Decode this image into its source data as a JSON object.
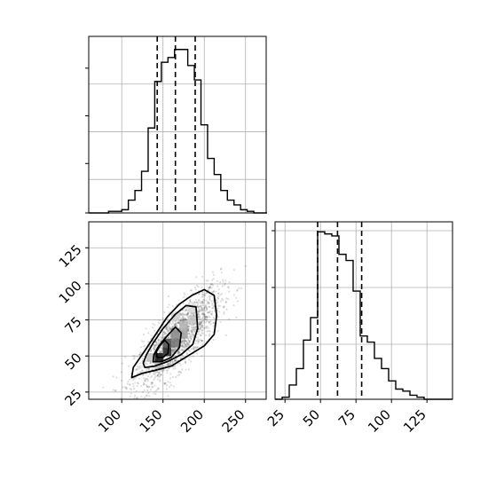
{
  "chart_data": [
    {
      "type": "histogram",
      "panel": "top-left",
      "x_range": [
        60,
        275
      ],
      "grid": true,
      "bin_edges": [
        60,
        68,
        76,
        84,
        92,
        100,
        108,
        116,
        124,
        132,
        140,
        148,
        156,
        164,
        172,
        180,
        188,
        196,
        204,
        212,
        220,
        228,
        236,
        244,
        252,
        260,
        268,
        276
      ],
      "counts": [
        0,
        0,
        0,
        1,
        1,
        2,
        8,
        14,
        26,
        53,
        82,
        94,
        97,
        102,
        102,
        92,
        83,
        55,
        34,
        24,
        14,
        8,
        5,
        2,
        1,
        0,
        0
      ],
      "quantile_lines": [
        143,
        165,
        189
      ],
      "x_ticks": [],
      "y_ticks": []
    },
    {
      "type": "density-scatter",
      "panel": "bottom-left",
      "x_range": [
        60,
        275
      ],
      "y_range": [
        20,
        143
      ],
      "grid": true,
      "x_ticks": [
        "100",
        "150",
        "200",
        "250"
      ],
      "y_ticks": [
        "25",
        "50",
        "75",
        "100",
        "125"
      ],
      "x_tick_values": [
        100,
        150,
        200,
        250
      ],
      "y_tick_values": [
        25,
        50,
        75,
        100,
        125
      ],
      "contours": [
        {
          "level": "outer",
          "points": [
            [
              112,
              35
            ],
            [
              125,
              38
            ],
            [
              140,
              40
            ],
            [
              160,
              43
            ],
            [
              180,
              50
            ],
            [
              200,
              57
            ],
            [
              212,
              65
            ],
            [
              215,
              78
            ],
            [
              212,
              92
            ],
            [
              200,
              96
            ],
            [
              185,
              92
            ],
            [
              170,
              86
            ],
            [
              155,
              77
            ],
            [
              140,
              64
            ],
            [
              126,
              52
            ],
            [
              114,
              42
            ]
          ]
        },
        {
          "level": "middle",
          "points": [
            [
              128,
              42
            ],
            [
              140,
              43
            ],
            [
              155,
              46
            ],
            [
              172,
              51
            ],
            [
              186,
              58
            ],
            [
              192,
              69
            ],
            [
              190,
              84
            ],
            [
              178,
              85
            ],
            [
              165,
              79
            ],
            [
              150,
              69
            ],
            [
              138,
              59
            ],
            [
              130,
              51
            ],
            [
              126,
              45
            ]
          ]
        },
        {
          "level": "inner",
          "points": [
            [
              138,
              46
            ],
            [
              148,
              46
            ],
            [
              160,
              49
            ],
            [
              170,
              56
            ],
            [
              172,
              66
            ],
            [
              165,
              70
            ],
            [
              155,
              64
            ],
            [
              145,
              57
            ],
            [
              139,
              51
            ]
          ]
        },
        {
          "level": "core",
          "points": [
            [
              143,
              49
            ],
            [
              150,
              49
            ],
            [
              156,
              52
            ],
            [
              157,
              58
            ],
            [
              152,
              61
            ],
            [
              146,
              57
            ],
            [
              142,
              53
            ]
          ]
        }
      ],
      "density_cells": [
        {
          "x": 140,
          "y": 46,
          "v": 0.95
        },
        {
          "x": 150,
          "y": 50,
          "v": 0.85
        },
        {
          "x": 150,
          "y": 56,
          "v": 0.7
        },
        {
          "x": 160,
          "y": 56,
          "v": 0.55
        },
        {
          "x": 160,
          "y": 62,
          "v": 0.45
        },
        {
          "x": 170,
          "y": 62,
          "v": 0.35
        },
        {
          "x": 170,
          "y": 68,
          "v": 0.3
        },
        {
          "x": 180,
          "y": 72,
          "v": 0.22
        },
        {
          "x": 140,
          "y": 40,
          "v": 0.25
        },
        {
          "x": 130,
          "y": 46,
          "v": 0.25
        },
        {
          "x": 180,
          "y": 80,
          "v": 0.15
        },
        {
          "x": 160,
          "y": 74,
          "v": 0.18
        }
      ]
    },
    {
      "type": "histogram",
      "panel": "bottom-right",
      "x_range": [
        18,
        143
      ],
      "grid": true,
      "bin_edges": [
        18,
        23,
        28,
        33,
        38,
        43,
        48,
        53,
        58,
        63,
        68,
        73,
        78,
        83,
        88,
        93,
        98,
        103,
        108,
        113,
        118,
        123,
        128,
        133,
        138,
        143
      ],
      "counts": [
        0,
        1,
        7,
        15,
        29,
        40,
        82,
        81,
        80,
        71,
        68,
        53,
        31,
        28,
        20,
        15,
        9,
        5,
        4,
        2,
        1,
        0,
        0,
        0,
        0
      ],
      "quantile_lines": [
        48,
        62,
        79
      ],
      "x_ticks": [
        "25",
        "50",
        "75",
        "100",
        "125"
      ],
      "x_tick_values": [
        25,
        50,
        75,
        100,
        125
      ],
      "y_ticks": []
    }
  ]
}
